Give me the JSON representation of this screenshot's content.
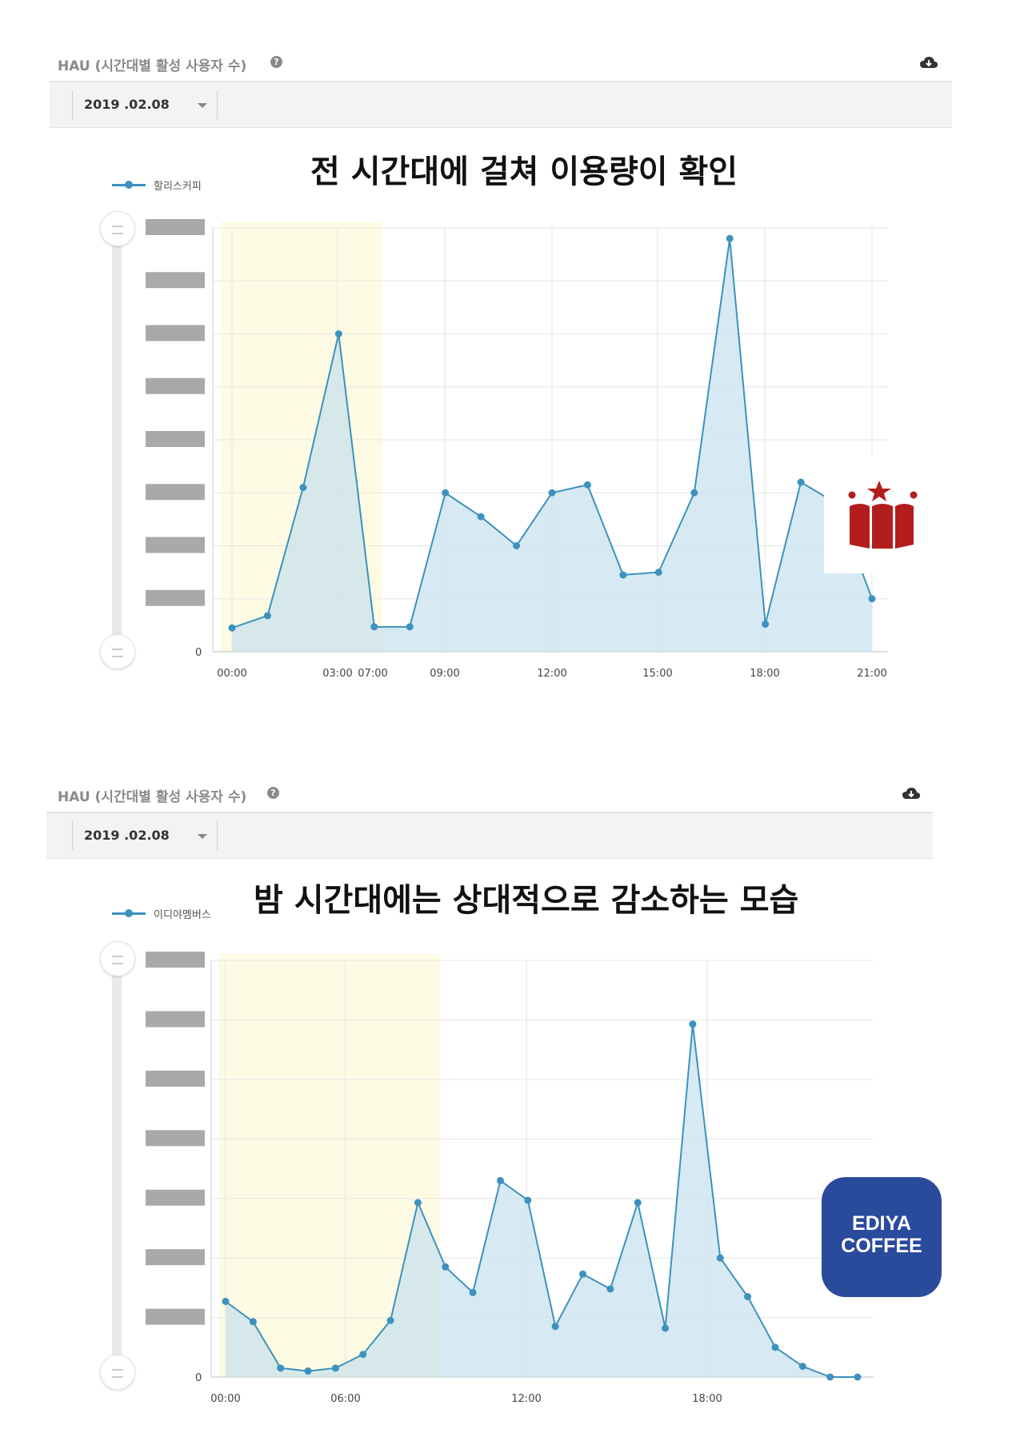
{
  "panels": [
    {
      "title": "HAU (시간대별 활성 사용자 수)",
      "help_glyph": "?",
      "download_icon": "cloud-download-icon",
      "date": "2019 .02.08",
      "headline": "전 시간대에 걸쳐 이용량이 확인",
      "logo_icon": "crown-logo-icon",
      "colors": {
        "line": "#3c92bd",
        "fill": "#c9e1ee",
        "highlight": "#fdfbe3",
        "logo": "#b41d1d"
      },
      "chart_data": {
        "type": "area",
        "series": [
          {
            "name": "할리스커피",
            "x": [
              0,
              1,
              2,
              3,
              4,
              5,
              6,
              7,
              8,
              9,
              10,
              11,
              12,
              13,
              14,
              15,
              16,
              17,
              18
            ],
            "y": [
              0.45,
              0.68,
              3.1,
              6.0,
              0.47,
              0.47,
              3.0,
              2.55,
              2.0,
              3.0,
              3.15,
              1.45,
              1.5,
              3.0,
              7.8,
              0.52,
              3.2,
              2.8,
              1.0
            ]
          }
        ],
        "x_tick_labels": [
          {
            "x": 0,
            "label": "00:00"
          },
          {
            "x": 3,
            "label": "03:00"
          },
          {
            "x": 4,
            "label": "07:00"
          },
          {
            "x": 6,
            "label": "09:00"
          },
          {
            "x": 9,
            "label": "12:00"
          },
          {
            "x": 12,
            "label": "15:00"
          },
          {
            "x": 15,
            "label": "18:00"
          },
          {
            "x": 18,
            "label": "21:00"
          }
        ],
        "y_zero_label": "0",
        "y_gridlines": [
          0,
          1,
          2,
          3,
          4,
          5,
          6,
          7,
          8
        ],
        "ylim": [
          0,
          8
        ],
        "highlight_range": [
          0,
          4
        ],
        "grid": true,
        "legend_position": "top-left",
        "y_tick_labels_redacted": true
      }
    },
    {
      "title": "HAU (시간대별 활성 사용자 수)",
      "help_glyph": "?",
      "download_icon": "cloud-download-icon",
      "date": "2019 .02.08",
      "headline": "밤 시간대에는 상대적으로 감소하는 모습",
      "logo_text_1": "EDIYA",
      "logo_text_2": "COFFEE",
      "colors": {
        "line": "#3c92bd",
        "fill": "#c9e1ee",
        "highlight": "#fdfbe3",
        "logo": "#2a4a9c"
      },
      "chart_data": {
        "type": "area",
        "series": [
          {
            "name": "이디야멤버스",
            "x": [
              0,
              1,
              2,
              3,
              4,
              5,
              6,
              7,
              8,
              9,
              10,
              11,
              12,
              13,
              14,
              15,
              16,
              17,
              18,
              19,
              20,
              21,
              22,
              23
            ],
            "y": [
              1.27,
              0.93,
              0.15,
              0.1,
              0.15,
              0.38,
              0.95,
              2.93,
              1.85,
              1.42,
              3.3,
              2.97,
              0.85,
              1.73,
              1.48,
              2.93,
              0.82,
              5.93,
              2.0,
              1.35,
              0.5,
              0.18,
              0,
              0
            ]
          }
        ],
        "x_tick_labels": [
          {
            "x": 0,
            "label": "00:00"
          },
          {
            "x": 6,
            "label": "06:00"
          },
          {
            "x": 15,
            "label": "12:00"
          },
          {
            "x": 24,
            "label": "18:00"
          }
        ],
        "y_zero_label": "0",
        "y_gridlines": [
          0,
          1,
          2,
          3,
          4,
          5,
          6,
          7
        ],
        "ylim": [
          0,
          7
        ],
        "highlight_range": [
          0,
          7.5
        ],
        "grid": true,
        "legend_position": "top-left",
        "y_tick_labels_redacted": true
      }
    }
  ]
}
